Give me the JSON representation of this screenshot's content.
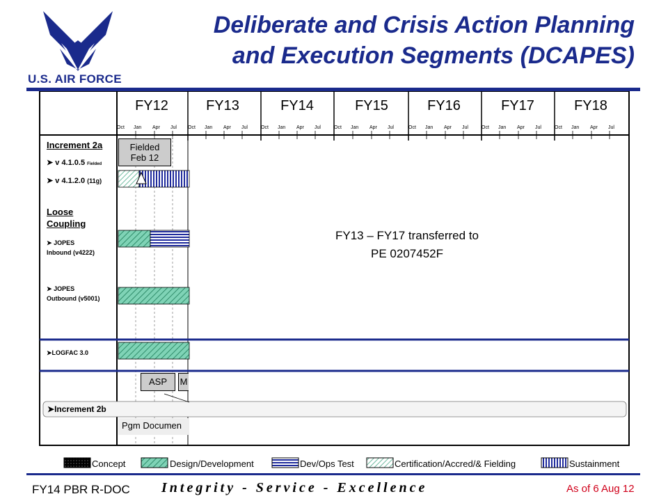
{
  "slide": {
    "title_line1": "Deliberate and Crisis Action Planning",
    "title_line2": "and Execution Segments (DCAPES)",
    "logo_text": "U.S. AIR FORCE"
  },
  "timeline": {
    "fiscal_years": [
      "FY12",
      "FY13",
      "FY14",
      "FY15",
      "FY16",
      "FY17",
      "FY18"
    ],
    "quarter_ticks": [
      "Oct",
      "Jan",
      "Apr",
      "Jul"
    ]
  },
  "rows": {
    "increment_2a": "Increment 2a",
    "v4105": "v 4.1.0.5",
    "v4105_note": "Fielded",
    "v4120": "v 4.1.2.0",
    "v4120_note": "(11g)",
    "loose_line1": "Loose",
    "loose_line2": "Coupling",
    "jopes_in_line1": "JOPES",
    "jopes_in_line2": "Inbound (v4222)",
    "jopes_out_line1": "JOPES",
    "jopes_out_line2": "Outbound (v5001)",
    "logfac": "LOGFAC 3.0",
    "increment_2b": "Increment 2b"
  },
  "boxes": {
    "fielded_line1": "Fielded",
    "fielded_line2": "Feb 12",
    "asp": "ASP",
    "next_partial": "M",
    "pgm_doc": "Pgm Documen"
  },
  "note": {
    "line1": "FY13 – FY17 transferred to",
    "line2": "PE 0207452F"
  },
  "legend": {
    "concept": "Concept",
    "design": "Design/Development",
    "devops": "Dev/Ops Test",
    "cert": "Certification/Accred/& Fielding",
    "sustain": "Sustainment"
  },
  "footer": {
    "left": "FY14 PBR R-DOC",
    "motto": "Integrity - Service - Excellence",
    "date": "As of 6 Aug 12"
  },
  "colors": {
    "brand_blue": "#1a2a8c",
    "design_green": "#4aaa88",
    "devops_blue": "#1e2a9c",
    "date_red": "#d0001a"
  }
}
